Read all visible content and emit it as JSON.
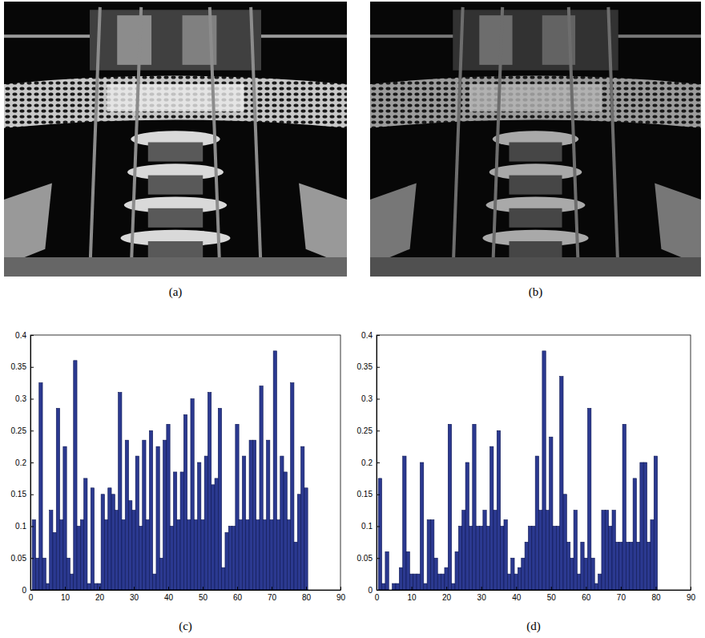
{
  "photos": [
    {
      "title": "(a)"
    },
    {
      "title": "(b)"
    }
  ],
  "chart_data": [
    {
      "type": "bar",
      "title": "(c)",
      "color": "#2b3990",
      "x": [
        1,
        2,
        3,
        4,
        5,
        6,
        7,
        8,
        9,
        10,
        11,
        12,
        13,
        14,
        15,
        16,
        17,
        18,
        19,
        20,
        21,
        22,
        23,
        24,
        25,
        26,
        27,
        28,
        29,
        30,
        31,
        32,
        33,
        34,
        35,
        36,
        37,
        38,
        39,
        40,
        41,
        42,
        43,
        44,
        45,
        46,
        47,
        48,
        49,
        50,
        51,
        52,
        53,
        54,
        55,
        56,
        57,
        58,
        59,
        60,
        61,
        62,
        63,
        64,
        65,
        66,
        67,
        68,
        69,
        70,
        71,
        72,
        73,
        74,
        75,
        76,
        77,
        78,
        79,
        80
      ],
      "values": [
        0.11,
        0.05,
        0.325,
        0.05,
        0.01,
        0.125,
        0.09,
        0.285,
        0.11,
        0.225,
        0.05,
        0.025,
        0.36,
        0.1,
        0.11,
        0.175,
        0.01,
        0.16,
        0.01,
        0.01,
        0.15,
        0.11,
        0.16,
        0.15,
        0.125,
        0.31,
        0.11,
        0.235,
        0.14,
        0.125,
        0.21,
        0.1,
        0.235,
        0.11,
        0.25,
        0.025,
        0.225,
        0.05,
        0.235,
        0.26,
        0.1,
        0.185,
        0.11,
        0.185,
        0.275,
        0.11,
        0.3,
        0.11,
        0.2,
        0.11,
        0.21,
        0.31,
        0.165,
        0.175,
        0.285,
        0.035,
        0.09,
        0.1,
        0.1,
        0.26,
        0.11,
        0.21,
        0.11,
        0.235,
        0.235,
        0.11,
        0.32,
        0.11,
        0.235,
        0.11,
        0.375,
        0.11,
        0.21,
        0.185,
        0.11,
        0.325,
        0.075,
        0.15,
        0.225,
        0.16
      ],
      "xlim": [
        0,
        90
      ],
      "xticks": [
        0,
        10,
        20,
        30,
        40,
        50,
        60,
        70,
        80,
        90
      ],
      "ylim": [
        0,
        0.4
      ],
      "yticks": [
        0,
        0.05,
        0.1,
        0.15,
        0.2,
        0.25,
        0.3,
        0.35,
        0.4
      ],
      "grid": false
    },
    {
      "type": "bar",
      "title": "(d)",
      "color": "#2b3990",
      "x": [
        1,
        2,
        3,
        4,
        5,
        6,
        7,
        8,
        9,
        10,
        11,
        12,
        13,
        14,
        15,
        16,
        17,
        18,
        19,
        20,
        21,
        22,
        23,
        24,
        25,
        26,
        27,
        28,
        29,
        30,
        31,
        32,
        33,
        34,
        35,
        36,
        37,
        38,
        39,
        40,
        41,
        42,
        43,
        44,
        45,
        46,
        47,
        48,
        49,
        50,
        51,
        52,
        53,
        54,
        55,
        56,
        57,
        58,
        59,
        60,
        61,
        62,
        63,
        64,
        65,
        66,
        67,
        68,
        69,
        70,
        71,
        72,
        73,
        74,
        75,
        76,
        77,
        78,
        79,
        80
      ],
      "values": [
        0.175,
        0.01,
        0.06,
        0,
        0.01,
        0.01,
        0.035,
        0.21,
        0.06,
        0.025,
        0.025,
        0.025,
        0.2,
        0.01,
        0.11,
        0.11,
        0.05,
        0.025,
        0.025,
        0.035,
        0.26,
        0.01,
        0.06,
        0.1,
        0.125,
        0.2,
        0.1,
        0.26,
        0.1,
        0.1,
        0.125,
        0.1,
        0.225,
        0.125,
        0.25,
        0.1,
        0.11,
        0.025,
        0.05,
        0.025,
        0.035,
        0.05,
        0.075,
        0.1,
        0.1,
        0.21,
        0.125,
        0.375,
        0.125,
        0.24,
        0.1,
        0.1,
        0.335,
        0.15,
        0.075,
        0.05,
        0.125,
        0.025,
        0.075,
        0.05,
        0.285,
        0.05,
        0.01,
        0.025,
        0.125,
        0.125,
        0.1,
        0.125,
        0.075,
        0.075,
        0.26,
        0.075,
        0.075,
        0.175,
        0.075,
        0.2,
        0.2,
        0.075,
        0.11,
        0.21
      ],
      "xlim": [
        0,
        90
      ],
      "xticks": [
        0,
        10,
        20,
        30,
        40,
        50,
        60,
        70,
        80,
        90
      ],
      "ylim": [
        0,
        0.4
      ],
      "yticks": [
        0,
        0.05,
        0.1,
        0.15,
        0.2,
        0.25,
        0.3,
        0.35,
        0.4
      ],
      "grid": false
    }
  ]
}
